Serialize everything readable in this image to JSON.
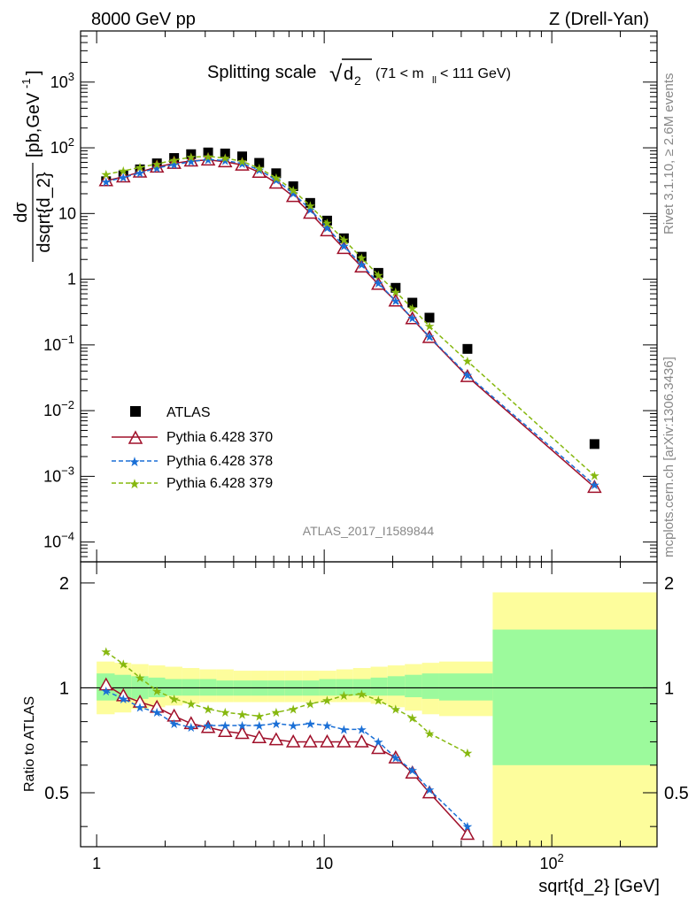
{
  "header": {
    "left": "8000 GeV pp",
    "right": "Z (Drell-Yan)"
  },
  "title": {
    "main": "Splitting scale",
    "sqrt_symbol": "√",
    "sqrt_arg": "d",
    "sqrt_sub": "2",
    "range_prefix": "(71 < m",
    "range_sub": "ll",
    "range_suffix": " < 111 GeV)"
  },
  "side_labels": {
    "rivet": "Rivet 3.1.10, ≥ 2.6M events",
    "mcplots": "mcplots.cern.ch [arXiv:1306.3436]"
  },
  "analysis_id": "ATLAS_2017_I1589844",
  "axes": {
    "y_main_num": "dσ",
    "y_main_den": "dsqrt{d_2}",
    "y_main_units": "[pb,GeV",
    "y_main_units_sup": "-1",
    "y_main_units_close": "]",
    "y_ratio": "Ratio to ATLAS",
    "x": "sqrt{d_2} [GeV]"
  },
  "ticks": {
    "main_y": [
      {
        "v": 1000,
        "base": "10",
        "exp": "3"
      },
      {
        "v": 100,
        "base": "10",
        "exp": "2"
      },
      {
        "v": 10,
        "base": "10",
        "exp": ""
      },
      {
        "v": 1,
        "base": "1",
        "exp": ""
      },
      {
        "v": 0.1,
        "base": "10",
        "exp": "−1"
      },
      {
        "v": 0.01,
        "base": "10",
        "exp": "−2"
      },
      {
        "v": 0.001,
        "base": "10",
        "exp": "−3"
      },
      {
        "v": 0.0001,
        "base": "10",
        "exp": "−4"
      }
    ],
    "ratio_y": [
      {
        "v": 0.5,
        "label": "0.5"
      },
      {
        "v": 1,
        "label": "1"
      },
      {
        "v": 2,
        "label": "2"
      }
    ],
    "x": [
      {
        "v": 1,
        "base": "1",
        "exp": ""
      },
      {
        "v": 10,
        "base": "10",
        "exp": ""
      },
      {
        "v": 100,
        "base": "10",
        "exp": "2"
      }
    ]
  },
  "legend": {
    "atlas": "ATLAS",
    "p370": "Pythia 6.428 370",
    "p378": "Pythia 6.428 378",
    "p379": "Pythia 6.428 379"
  },
  "chart_data": {
    "type": "scatter",
    "x_scale": "log",
    "y_scale": "log",
    "xlim": [
      0.85,
      290
    ],
    "ylim_main": [
      5e-05,
      6000
    ],
    "ylim_ratio": [
      0.35,
      2.3
    ],
    "colors": {
      "atlas": "#000000",
      "p370": "#a0102a",
      "p378": "#1a6fd6",
      "p379": "#86b80f",
      "band_inner": "#9cfa9c",
      "band_outer": "#fdfd9c"
    },
    "x": [
      1.1,
      1.31,
      1.55,
      1.84,
      2.19,
      2.6,
      3.09,
      3.67,
      4.36,
      5.18,
      6.15,
      7.31,
      8.68,
      10.3,
      12.2,
      14.6,
      17.3,
      20.6,
      24.4,
      29.0,
      42.6,
      154.0
    ],
    "series": [
      {
        "name": "ATLAS",
        "key": "atlas",
        "values": [
          31,
          38,
          47,
          58,
          70,
          80,
          85,
          82,
          74,
          59,
          41,
          26,
          14.5,
          7.8,
          4.2,
          2.2,
          1.25,
          0.74,
          0.44,
          0.26,
          0.087,
          0.0031
        ]
      },
      {
        "name": "Pythia 6.428 370",
        "key": "p370",
        "ratios": [
          1.02,
          0.95,
          0.91,
          0.88,
          0.83,
          0.79,
          0.77,
          0.75,
          0.74,
          0.72,
          0.71,
          0.7,
          0.7,
          0.7,
          0.7,
          0.7,
          0.67,
          0.63,
          0.57,
          0.5,
          0.38,
          0.22
        ]
      },
      {
        "name": "Pythia 6.428 378",
        "key": "p378",
        "ratios": [
          0.98,
          0.93,
          0.88,
          0.85,
          0.79,
          0.77,
          0.78,
          0.78,
          0.78,
          0.78,
          0.79,
          0.78,
          0.79,
          0.78,
          0.76,
          0.76,
          0.7,
          0.63,
          0.58,
          0.51,
          0.4,
          0.24
        ]
      },
      {
        "name": "Pythia 6.428 379",
        "key": "p379",
        "ratios": [
          1.27,
          1.17,
          1.07,
          0.98,
          0.93,
          0.9,
          0.87,
          0.85,
          0.84,
          0.83,
          0.85,
          0.87,
          0.9,
          0.92,
          0.95,
          0.96,
          0.92,
          0.87,
          0.82,
          0.74,
          0.65,
          0.33
        ]
      }
    ],
    "bands": {
      "edges": [
        1.0,
        1.2,
        1.42,
        1.69,
        2.0,
        2.38,
        2.83,
        3.36,
        4.0,
        4.75,
        5.65,
        6.72,
        8.0,
        9.5,
        11.3,
        13.4,
        16.0,
        19.0,
        22.6,
        26.9,
        32.0,
        55.0,
        290.0
      ],
      "inner_lo": [
        0.92,
        0.92,
        0.93,
        0.94,
        0.95,
        0.95,
        0.95,
        0.95,
        0.95,
        0.95,
        0.95,
        0.95,
        0.95,
        0.95,
        0.95,
        0.95,
        0.95,
        0.95,
        0.94,
        0.93,
        0.92,
        0.6
      ],
      "inner_hi": [
        1.1,
        1.09,
        1.08,
        1.07,
        1.06,
        1.06,
        1.06,
        1.05,
        1.05,
        1.05,
        1.05,
        1.05,
        1.05,
        1.06,
        1.06,
        1.06,
        1.07,
        1.08,
        1.09,
        1.1,
        1.1,
        1.47
      ],
      "outer_lo": [
        0.84,
        0.85,
        0.87,
        0.88,
        0.89,
        0.9,
        0.91,
        0.91,
        0.91,
        0.91,
        0.91,
        0.91,
        0.91,
        0.91,
        0.91,
        0.91,
        0.9,
        0.88,
        0.86,
        0.84,
        0.83,
        0.35
      ],
      "outer_hi": [
        1.19,
        1.18,
        1.17,
        1.16,
        1.15,
        1.14,
        1.13,
        1.13,
        1.12,
        1.12,
        1.12,
        1.12,
        1.12,
        1.12,
        1.13,
        1.14,
        1.15,
        1.16,
        1.17,
        1.18,
        1.19,
        1.88
      ]
    }
  }
}
